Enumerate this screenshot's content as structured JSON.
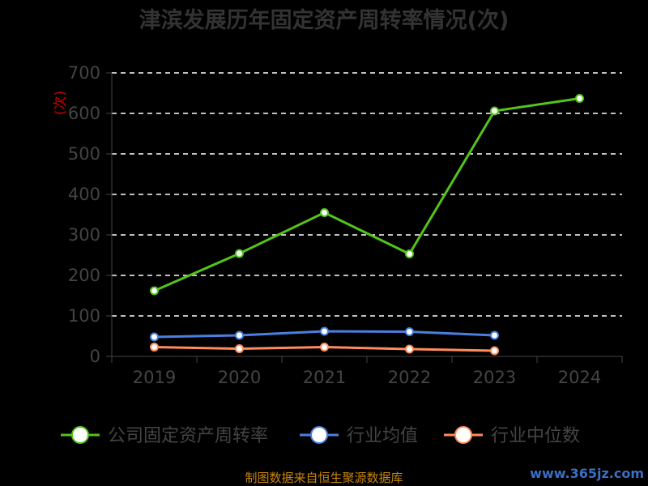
{
  "chart_data": {
    "type": "line",
    "title": "津滨发展历年固定资产周转率情况(次)",
    "ylabel": "(次)",
    "xlabel": "",
    "categories": [
      "2019",
      "2020",
      "2021",
      "2022",
      "2023",
      "2024"
    ],
    "yticks": [
      "0",
      "100",
      "200",
      "300",
      "400",
      "500",
      "600",
      "700"
    ],
    "ylim": [
      0,
      700
    ],
    "grid": true,
    "legend_position": "bottom",
    "series": [
      {
        "name": "公司固定资产周转率",
        "color": "#52c41a",
        "values": [
          162,
          254,
          355,
          253,
          606,
          637
        ]
      },
      {
        "name": "行业均值",
        "color": "#4a7fe0",
        "values": [
          48,
          52,
          62,
          61,
          52,
          null
        ]
      },
      {
        "name": "行业中位数",
        "color": "#ff8c5a",
        "values": [
          23,
          19,
          23,
          18,
          14,
          null
        ]
      }
    ]
  },
  "footer": {
    "source": "制图数据来自恒生聚源数据库",
    "watermark": "www.365jz.com"
  }
}
